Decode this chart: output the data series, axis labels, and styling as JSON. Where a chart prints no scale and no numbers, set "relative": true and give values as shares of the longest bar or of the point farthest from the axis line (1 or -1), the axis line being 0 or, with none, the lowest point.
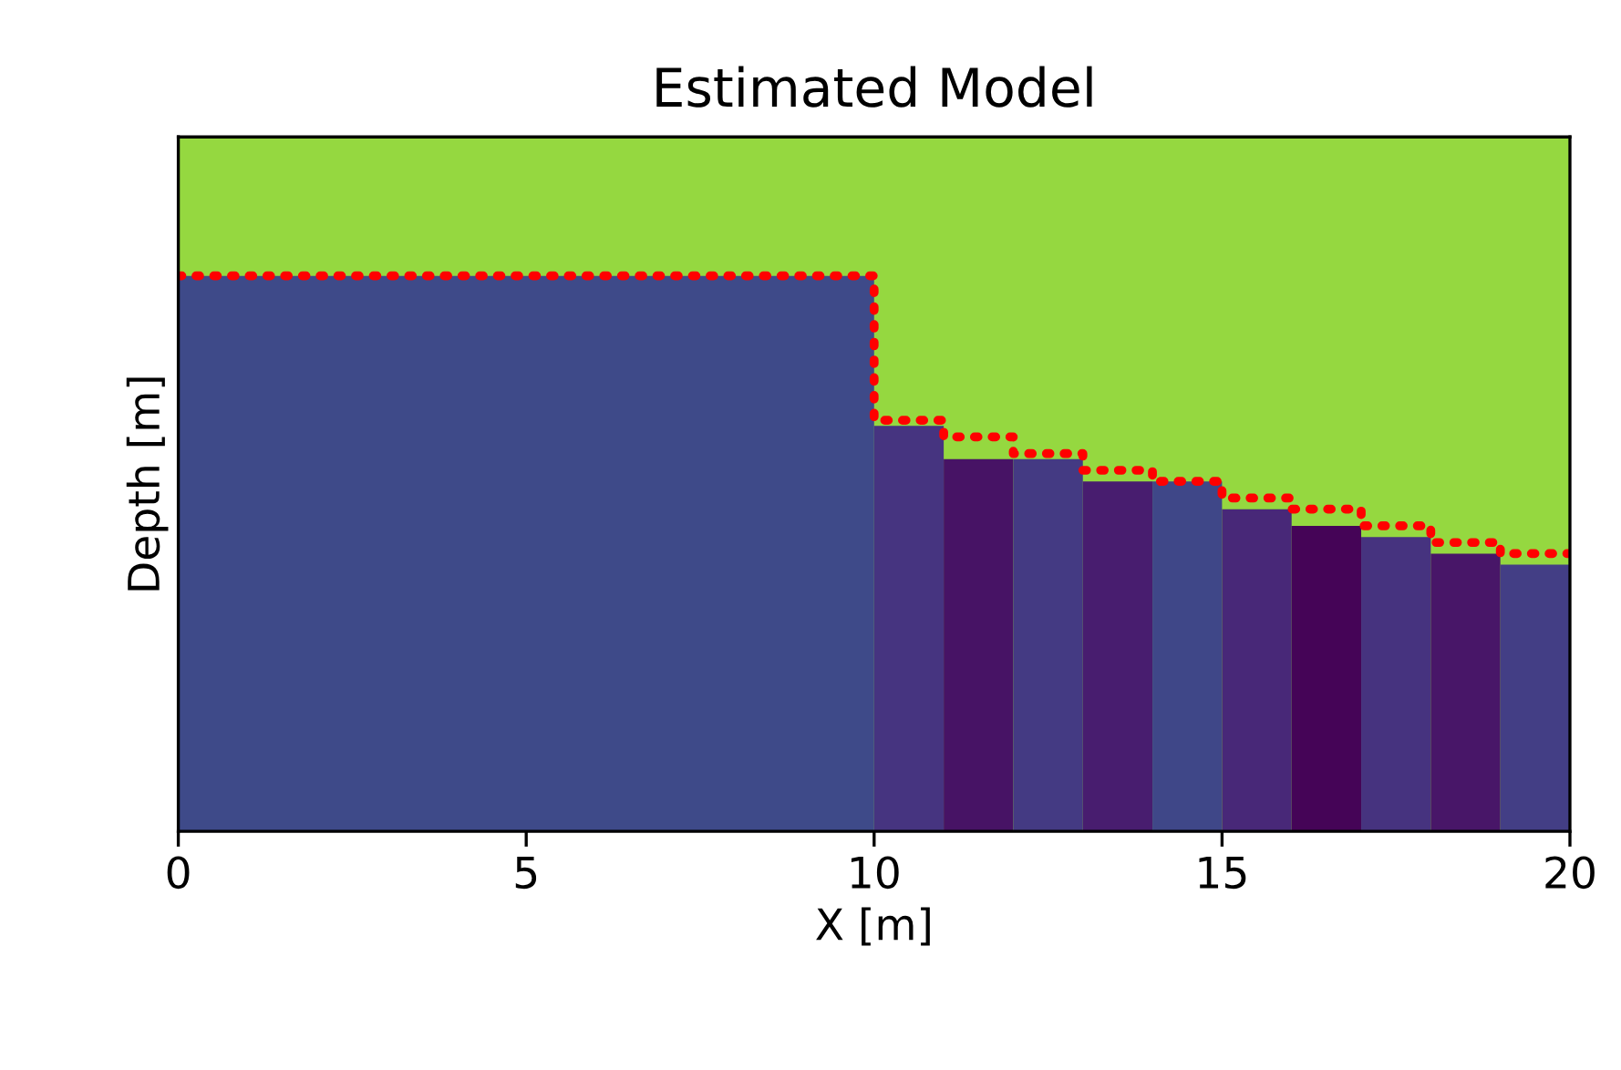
{
  "chart_data": {
    "type": "histogram",
    "title": "Estimated Model",
    "xlabel": "X [m]",
    "ylabel": "Depth [m]",
    "relative": true,
    "tick_labels": "x",
    "xlim": [
      0,
      20
    ],
    "xticks": [
      0,
      5,
      10,
      15,
      20
    ],
    "bins": [
      0,
      10,
      11,
      12,
      13,
      14,
      15,
      16,
      17,
      18,
      19,
      20
    ],
    "bands": [
      {
        "axis": "y",
        "from": 0,
        "to": 1.25,
        "color": "#95d840"
      }
    ],
    "series": [
      {
        "values": [
          1.0,
          0.73,
          0.67,
          0.67,
          0.63,
          0.63,
          0.58,
          0.55,
          0.53,
          0.5,
          0.48
        ],
        "colors": [
          "#3e4a89",
          "#463480",
          "#471365",
          "#443a83",
          "#481d6f",
          "#3f4788",
          "#482878",
          "#450457",
          "#46337f",
          "#481668",
          "#433e85"
        ]
      },
      {
        "type": "step",
        "x": [
          0,
          10,
          11,
          12,
          13,
          14,
          15,
          16,
          17,
          18,
          19,
          20
        ],
        "values": [
          1.0,
          0.74,
          0.71,
          0.68,
          0.65,
          0.63,
          0.6,
          0.58,
          0.55,
          0.52,
          0.5,
          0.5
        ],
        "color": "#ff0000",
        "line_style": "dotted"
      }
    ]
  }
}
